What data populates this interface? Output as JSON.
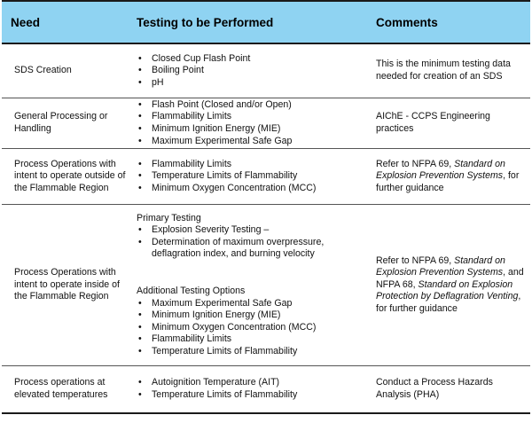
{
  "headers": {
    "need": "Need",
    "tests": "Testing to be Performed",
    "comments": "Comments"
  },
  "rows": [
    {
      "need": "SDS Creation",
      "tests": [
        "Closed Cup Flash Point",
        "Boiling Point",
        "pH"
      ],
      "comment": "This is the minimum testing data needed for creation of an SDS"
    },
    {
      "need": "General Processing or Handling",
      "tests": [
        "Flash Point (Closed and/or Open)",
        "Flammability Limits",
        "Minimum Ignition Energy (MIE)",
        "Maximum Experimental Safe Gap"
      ],
      "comment": "AIChE - CCPS Engineering practices"
    },
    {
      "need": "Process Operations with intent to operate outside of the Flammable Region",
      "tests": [
        "Flammability Limits",
        "Temperature  Limits of Flammability",
        "Minimum Oxygen Concentration (MCC)"
      ],
      "comment_a": "Refer to NFPA 69,",
      "comment_b": "Standard on Explosion Prevention Systems",
      "comment_c": ", for further guidance"
    },
    {
      "need": "Process Operations with intent to operate inside of the Flammable Region",
      "primary_heading": "Primary Testing",
      "primary": [
        "Explosion Severity Testing –",
        "Determination of maximum overpressure, deflagration index, and burning velocity"
      ],
      "additional_heading": "Additional Testing Options",
      "additional": [
        "Maximum Experimental Safe Gap",
        "Minimum Ignition Energy (MIE)",
        "Minimum Oxygen Concentration (MCC)",
        "Flammability Limits",
        "Temperature  Limits of Flammability"
      ],
      "comment_a": "Refer to NFPA 69,",
      "comment_b": "Standard on Explosion Prevention Systems",
      "comment_c": ", and NFPA 68,",
      "comment_d": "Standard on Explosion Protection by Deflagration Venting",
      "comment_e": ", for further guidance"
    },
    {
      "need": "Process operations at elevated temperatures",
      "tests": [
        "Autoignition Temperature (AIT)",
        "Temperature  Limits of Flammability"
      ],
      "comment": "Conduct a Process Hazards Analysis (PHA)"
    }
  ]
}
